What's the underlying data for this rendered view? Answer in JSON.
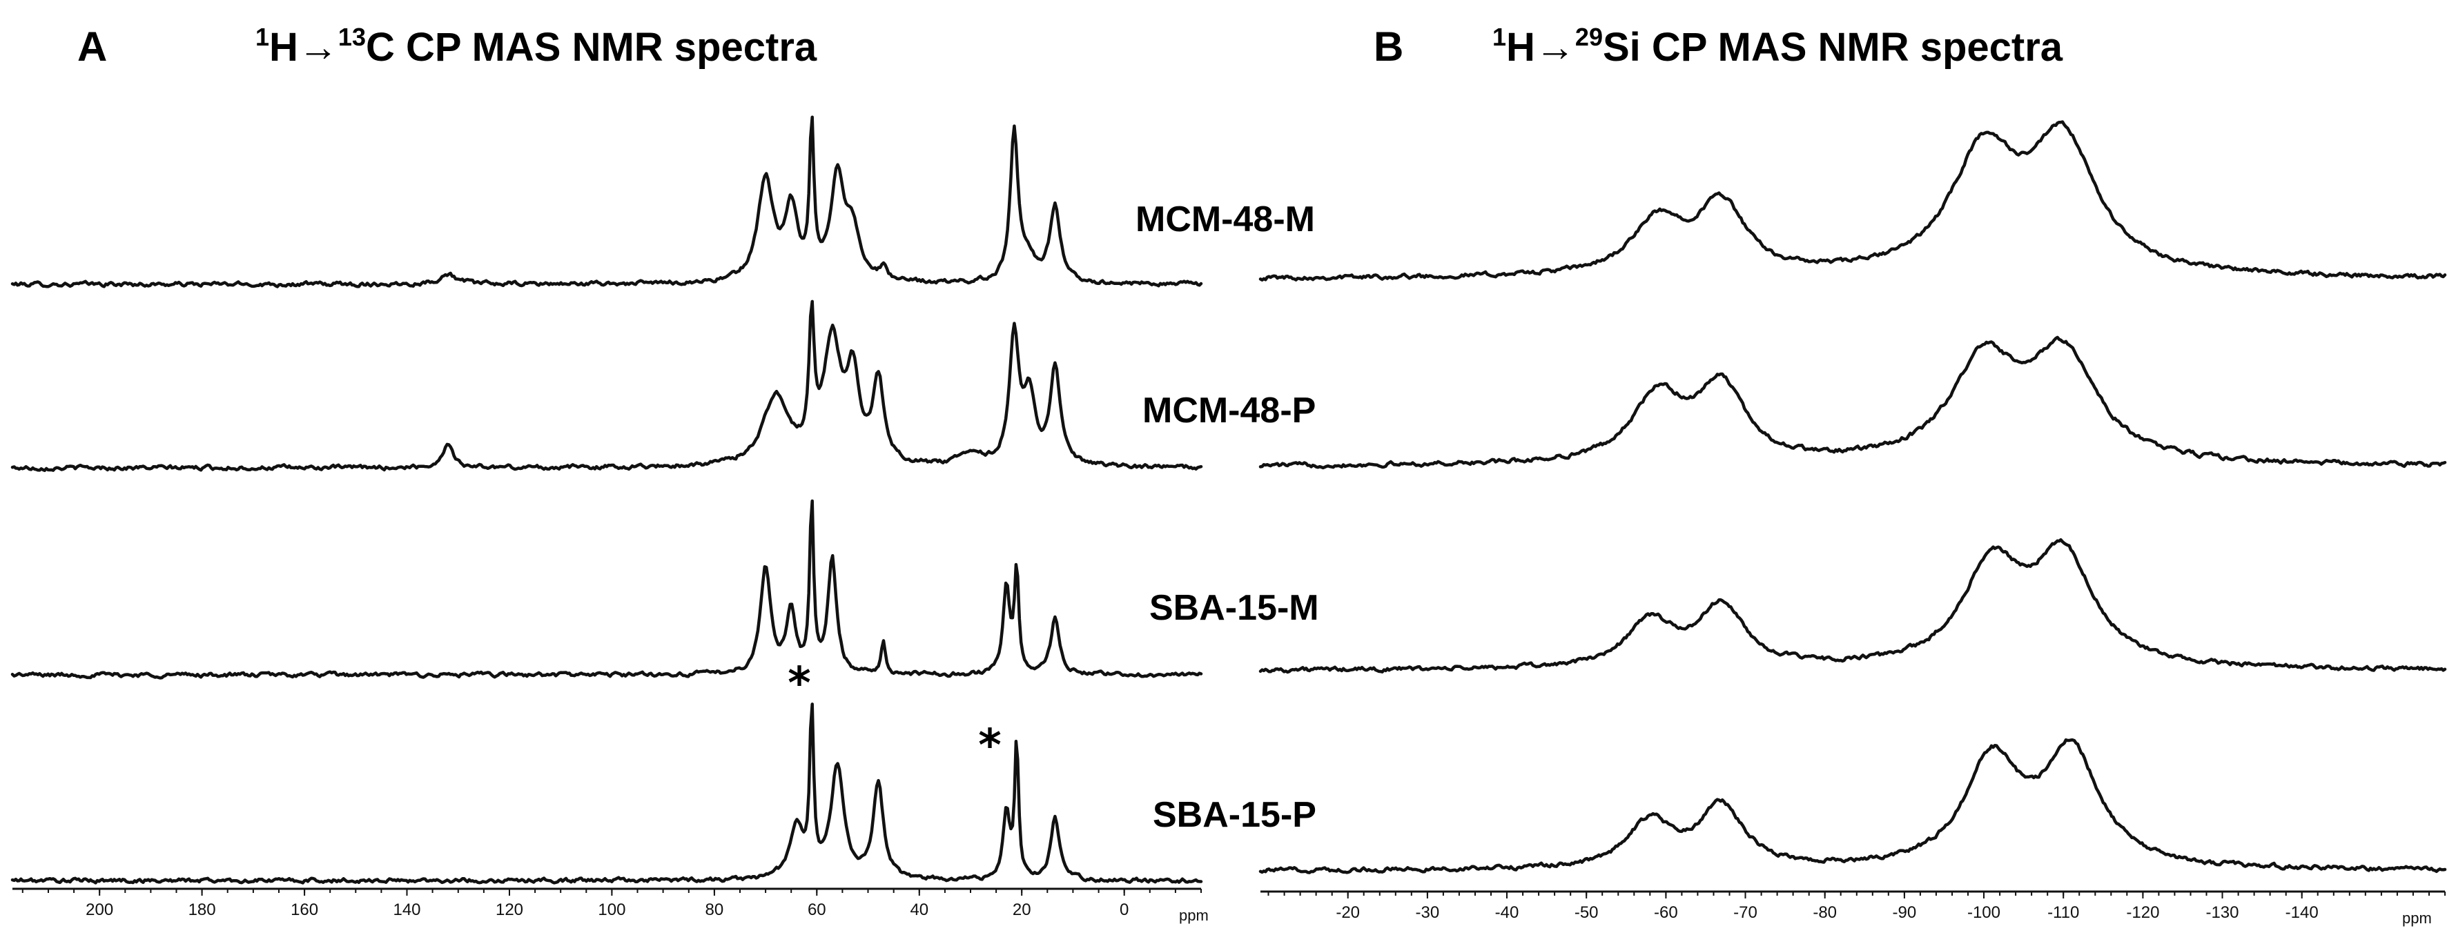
{
  "figure": {
    "panels": [
      {
        "letter": "A",
        "title": {
          "pre": "1",
          "mid": "H→",
          "sup": "13",
          "post": "C CP MAS NMR spectra"
        }
      },
      {
        "letter": "B",
        "title": {
          "pre": "1",
          "mid": "H→",
          "sup": "29",
          "post": "Si CP MAS NMR spectra"
        }
      }
    ],
    "samples": [
      "MCM-48-M",
      "MCM-48-P",
      "SBA-15-M",
      "SBA-15-P"
    ],
    "asterisk": "*"
  },
  "chart_data": [
    {
      "type": "line",
      "title": "1H→13C CP MAS NMR spectra",
      "xlabel": "ppm",
      "ylabel": "",
      "xlim": [
        217,
        -15
      ],
      "x_reversed": true,
      "ticks": [
        200,
        180,
        160,
        140,
        120,
        100,
        80,
        60,
        40,
        20,
        0
      ],
      "tick_labels": [
        "200",
        "180",
        "160",
        "140",
        "120",
        "100",
        "80",
        "60",
        "40",
        "20",
        "0"
      ],
      "grid": false,
      "asterisk_marks_ppm": [
        61,
        21
      ],
      "series": [
        {
          "name": "MCM-48-M",
          "peaks": [
            [
              70,
              0.62,
              1.8
            ],
            [
              65,
              0.42,
              1.5
            ],
            [
              61,
              0.9,
              0.5
            ],
            [
              56,
              0.62,
              1.6
            ],
            [
              53,
              0.28,
              1.8
            ],
            [
              47,
              0.07,
              0.8
            ],
            [
              21.5,
              0.88,
              0.9
            ],
            [
              19,
              0.15,
              2.0
            ],
            [
              13.5,
              0.46,
              1.2
            ],
            [
              132,
              0.06,
              2.0
            ]
          ]
        },
        {
          "name": "MCM-48-P",
          "peaks": [
            [
              68,
              0.42,
              3.0
            ],
            [
              61,
              0.78,
              0.6
            ],
            [
              57,
              0.74,
              2.0
            ],
            [
              53,
              0.5,
              1.5
            ],
            [
              48,
              0.5,
              1.3
            ],
            [
              30,
              0.08,
              2.5
            ],
            [
              21.5,
              0.78,
              1.1
            ],
            [
              18.5,
              0.4,
              1.4
            ],
            [
              13.5,
              0.58,
              1.2
            ],
            [
              132,
              0.15,
              1.2
            ]
          ]
        },
        {
          "name": "SBA-15-M",
          "peaks": [
            [
              70,
              0.64,
              1.2
            ],
            [
              65,
              0.38,
              1.1
            ],
            [
              61,
              1.02,
              0.45
            ],
            [
              57,
              0.7,
              1.0
            ],
            [
              47,
              0.2,
              0.5
            ],
            [
              23,
              0.52,
              0.8
            ],
            [
              21,
              0.62,
              0.5
            ],
            [
              13.5,
              0.34,
              1.0
            ]
          ]
        },
        {
          "name": "SBA-15-P",
          "peaks": [
            [
              64,
              0.32,
              1.6
            ],
            [
              61,
              1.0,
              0.45
            ],
            [
              56,
              0.68,
              1.5
            ],
            [
              48,
              0.58,
              1.2
            ],
            [
              23,
              0.4,
              0.8
            ],
            [
              21,
              0.82,
              0.45
            ],
            [
              13.5,
              0.38,
              1.0
            ]
          ]
        }
      ]
    },
    {
      "type": "line",
      "title": "1H→29Si CP MAS NMR spectra",
      "xlabel": "ppm",
      "ylabel": "",
      "xlim": [
        -9,
        -158
      ],
      "x_reversed": true,
      "ticks": [
        -20,
        -30,
        -40,
        -50,
        -60,
        -70,
        -80,
        -90,
        -100,
        -110,
        -120,
        -130,
        -140
      ],
      "tick_labels": [
        "-20",
        "-30",
        "-40",
        "-50",
        "-60",
        "-70",
        "-80",
        "-90",
        "-100",
        "-110",
        "-120",
        "-130",
        "-140"
      ],
      "grid": false,
      "series": [
        {
          "name": "MCM-48-M",
          "peaks": [
            [
              -59,
              0.32,
              4.0
            ],
            [
              -67,
              0.42,
              3.6
            ],
            [
              -100,
              0.72,
              5.0
            ],
            [
              -110,
              0.78,
              5.0
            ]
          ]
        },
        {
          "name": "MCM-48-P",
          "peaks": [
            [
              -59,
              0.4,
              4.0
            ],
            [
              -67,
              0.45,
              3.6
            ],
            [
              -100,
              0.6,
              5.0
            ],
            [
              -110,
              0.64,
              5.0
            ]
          ]
        },
        {
          "name": "SBA-15-M",
          "peaks": [
            [
              -58,
              0.28,
              3.6
            ],
            [
              -67,
              0.37,
              3.5
            ],
            [
              -101,
              0.6,
              4.5
            ],
            [
              -110,
              0.66,
              4.5
            ]
          ]
        },
        {
          "name": "SBA-15-P",
          "peaks": [
            [
              -58,
              0.28,
              3.4
            ],
            [
              -67,
              0.37,
              3.4
            ],
            [
              -101,
              0.64,
              4.2
            ],
            [
              -111,
              0.7,
              4.2
            ]
          ]
        }
      ]
    }
  ]
}
